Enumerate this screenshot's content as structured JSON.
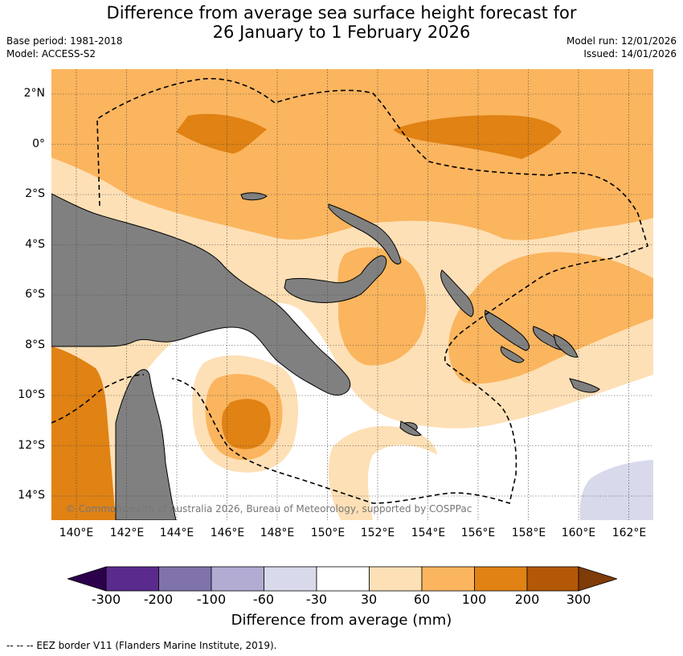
{
  "title_line1": "Difference from average sea surface height forecast for",
  "title_line2": "26 January to 1 February 2026",
  "meta": {
    "base_period": "Base period: 1981-2018",
    "model": "Model: ACCESS-S2",
    "model_run": "Model run: 12/01/2026",
    "issued": "Issued: 14/01/2026"
  },
  "map": {
    "lat_labels": [
      "2°N",
      "0°",
      "2°S",
      "4°S",
      "6°S",
      "8°S",
      "10°S",
      "12°S",
      "14°S"
    ],
    "lon_labels": [
      "140°E",
      "142°E",
      "144°E",
      "146°E",
      "148°E",
      "150°E",
      "152°E",
      "154°E",
      "156°E",
      "158°E",
      "160°E",
      "162°E"
    ],
    "copyright": "© Commonwealth of Australia 2026, Bureau of Meteorology, supported by COSPPac"
  },
  "colors": {
    "c_neg300": "#2d004b",
    "c_neg200": "#5a2a8c",
    "c_neg100": "#8073ac",
    "c_neg60": "#b2abd2",
    "c_neg30": "#d8daeb",
    "c_0": "#ffffff",
    "c_30": "#fee0b6",
    "c_60": "#fbb55e",
    "c_100": "#e08214",
    "c_200": "#b35806",
    "c_300": "#7f3b08",
    "land": "#808080"
  },
  "colorbar": {
    "ticks": [
      "-300",
      "-200",
      "-100",
      "-60",
      "-30",
      "30",
      "60",
      "100",
      "200",
      "300"
    ],
    "title": "Difference from average (mm)"
  },
  "eez_note": "--  --  -- EEZ border V11 (Flanders Marine Institute, 2019)."
}
